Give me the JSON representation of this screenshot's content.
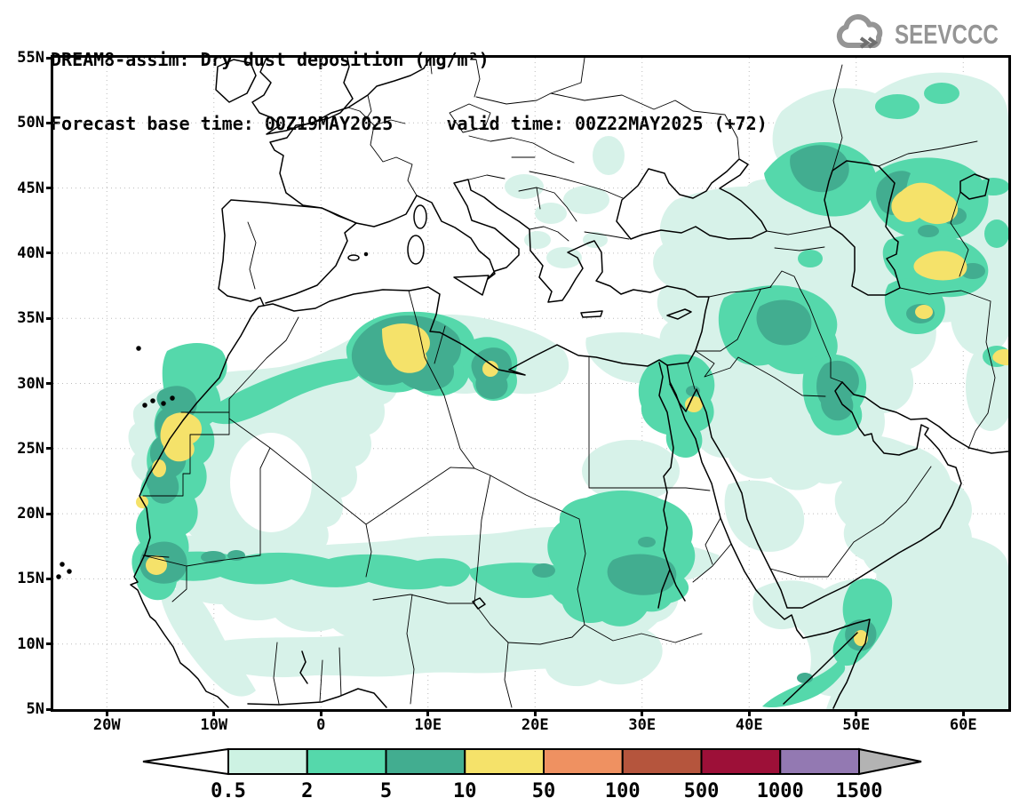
{
  "header": {
    "title": "DREAM8-assim: Dry dust deposition (mg/m²)",
    "subtitle": "Forecast base time: 00Z19MAY2025     valid time: 00Z22MAY2025 (+72)",
    "logo_text": "SEEVCCC"
  },
  "map": {
    "y_ticks": [
      "55N",
      "50N",
      "45N",
      "40N",
      "35N",
      "30N",
      "25N",
      "20N",
      "15N",
      "10N",
      "5N"
    ],
    "x_ticks": [
      "20W",
      "10W",
      "0",
      "10E",
      "20E",
      "30E",
      "40E",
      "50E",
      "60E"
    ]
  },
  "colorbar": {
    "labels": [
      "0.5",
      "2",
      "5",
      "10",
      "50",
      "100",
      "500",
      "1000",
      "1500"
    ],
    "arrow_left_color": "#ffffff",
    "arrow_right_color": "#b3b3b3",
    "segment_colors": [
      "#cdf2e3",
      "#55d8ab",
      "#42ad90",
      "#f5e26a",
      "#ef9161",
      "#b5553d",
      "#9d1038",
      "#9379b2"
    ]
  },
  "palette": {
    "contour_light": "#d7f2e9",
    "contour_mid": "#55d8ab",
    "contour_dark": "#42ad90",
    "contour_yellow": "#f5e26a",
    "coastline": "#000000",
    "grid": "#bcbcbc",
    "logo_gray": "#959595"
  }
}
